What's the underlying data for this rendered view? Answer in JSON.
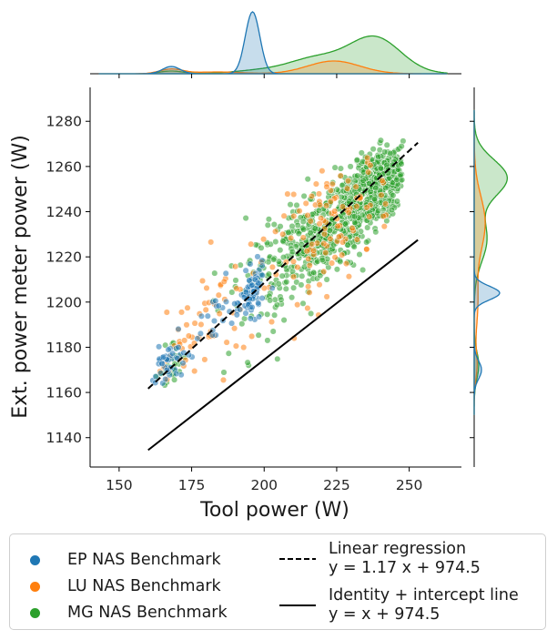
{
  "colors": {
    "ep": "#1f77b4",
    "lu": "#ff7f0e",
    "mg": "#2ca02c",
    "line": "#000000"
  },
  "chart_data": {
    "type": "scatter",
    "title": "",
    "xlabel": "Tool power (W)",
    "ylabel": "Ext. power meter power (W)",
    "xlim": [
      140,
      268
    ],
    "ylim": [
      1127,
      1295
    ],
    "xticks": [
      150,
      175,
      200,
      225,
      250
    ],
    "yticks": [
      1140,
      1160,
      1180,
      1200,
      1220,
      1240,
      1260,
      1280
    ],
    "grid": false,
    "legend_position": "bottom",
    "series": [
      {
        "name": "EP NAS Benchmark",
        "kind": "scatter",
        "color": "#1f77b4",
        "clusters": [
          {
            "x_center": 167,
            "y_center": 1172,
            "x_spread": 3,
            "y_spread": 5,
            "count": 45
          },
          {
            "x_center": 196,
            "y_center": 1204,
            "x_spread": 2,
            "y_spread": 5,
            "count": 80
          },
          {
            "x_center": 185,
            "y_center": 1193,
            "x_spread": 6,
            "y_spread": 7,
            "count": 25
          }
        ]
      },
      {
        "name": "LU NAS Benchmark",
        "kind": "scatter",
        "color": "#ff7f0e",
        "clusters": [
          {
            "x_center": 224,
            "y_center": 1233,
            "x_spread": 10,
            "y_spread": 13,
            "count": 110
          },
          {
            "x_center": 184,
            "y_center": 1195,
            "x_spread": 10,
            "y_spread": 14,
            "count": 55
          },
          {
            "x_center": 168,
            "y_center": 1172,
            "x_spread": 4,
            "y_spread": 7,
            "count": 20
          }
        ]
      },
      {
        "name": "MG NAS Benchmark",
        "kind": "scatter",
        "color": "#2ca02c",
        "clusters": [
          {
            "x_center": 238,
            "y_center": 1250,
            "x_spread": 7,
            "y_spread": 8,
            "count": 600
          },
          {
            "x_center": 218,
            "y_center": 1228,
            "x_spread": 10,
            "y_spread": 11,
            "count": 320
          },
          {
            "x_center": 200,
            "y_center": 1210,
            "x_spread": 9,
            "y_spread": 15,
            "count": 60
          },
          {
            "x_center": 168,
            "y_center": 1172,
            "x_spread": 3,
            "y_spread": 6,
            "count": 30
          }
        ]
      },
      {
        "name": "Linear regression",
        "equation": "y = 1.17 x + 974.5",
        "kind": "line",
        "style": "dashed",
        "slope": 1.17,
        "intercept": 974.5,
        "x_range": [
          160,
          253
        ]
      },
      {
        "name": "Identity + intercept line",
        "equation": "y = x + 974.5",
        "kind": "line",
        "style": "solid",
        "slope": 1.0,
        "intercept": 974.5,
        "x_range": [
          160,
          253
        ]
      }
    ],
    "marginals": {
      "top": {
        "ep": [
          [
            168,
            8,
            3
          ],
          [
            196,
            68,
            2.5
          ]
        ],
        "lu": [
          [
            168,
            5,
            4
          ],
          [
            224,
            14,
            9
          ],
          [
            184,
            2,
            8
          ]
        ],
        "mg": [
          [
            168,
            3,
            4
          ],
          [
            238,
            40,
            9
          ],
          [
            218,
            16,
            9
          ],
          [
            200,
            4,
            10
          ]
        ]
      },
      "right": {
        "ep": [
          [
            1204,
            28,
            3
          ],
          [
            1170,
            8,
            4
          ]
        ],
        "lu": [
          [
            1235,
            12,
            12
          ],
          [
            1200,
            4,
            12
          ],
          [
            1172,
            3,
            6
          ]
        ],
        "mg": [
          [
            1255,
            36,
            8
          ],
          [
            1228,
            14,
            10
          ],
          [
            1172,
            5,
            6
          ]
        ]
      }
    }
  }
}
